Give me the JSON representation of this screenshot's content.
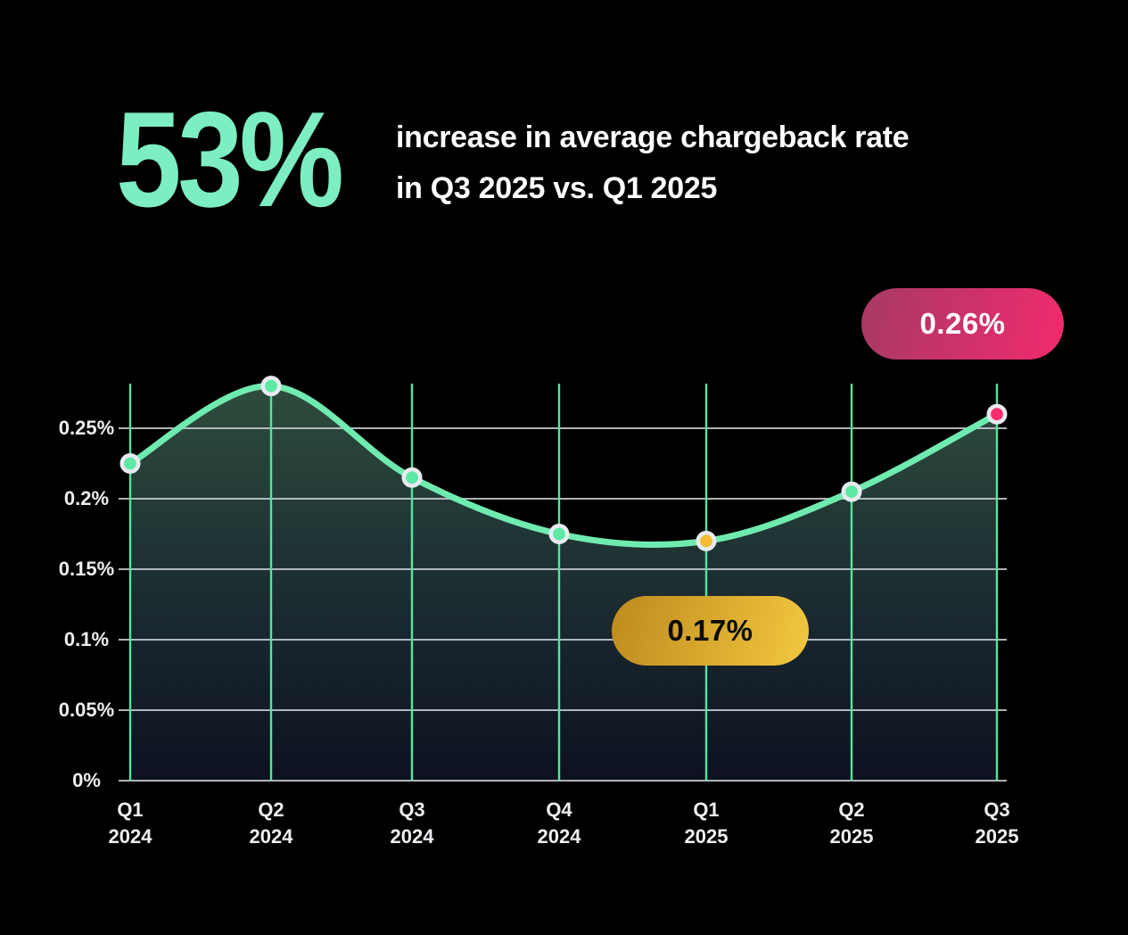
{
  "header": {
    "stat_value": "53%",
    "headline_line1": "increase in average chargeback rate",
    "headline_line2": "in Q3 2025 vs. Q1 2025"
  },
  "callouts": {
    "peak": {
      "label": "0.26%",
      "color_from": "#A63A65",
      "color_to": "#F22A6F",
      "text_color": "#FFFFFF"
    },
    "low": {
      "label": "0.17%",
      "color_from": "#BE8A1E",
      "color_to": "#F2C83F",
      "text_color": "#0B0B0B"
    }
  },
  "colors": {
    "background": "#000000",
    "stat_mint": "#7DEEC1",
    "headline_text": "#FFFFFF",
    "axis_text": "#EDEFF2",
    "line": "#70EBAF",
    "grid_vertical": "#52E69E",
    "grid_horizontal": "#C2C7CF",
    "point_ring": "#E7EAF0",
    "point_mint": "#5CE9A4",
    "point_gold": "#F5BD31",
    "point_pink": "#FA2E6F",
    "area_top": "#2E4D3D",
    "area_mid": "#1E3134",
    "area_bottom": "#0D1120"
  },
  "chart_data": {
    "type": "area",
    "title": "",
    "xlabel": "",
    "ylabel": "",
    "unit": "%",
    "categories": [
      "Q1 2024",
      "Q2 2024",
      "Q3 2024",
      "Q4 2024",
      "Q1 2025",
      "Q2 2025",
      "Q3 2025"
    ],
    "x_ticks": [
      {
        "quarter": "Q1",
        "year": "2024"
      },
      {
        "quarter": "Q2",
        "year": "2024"
      },
      {
        "quarter": "Q3",
        "year": "2024"
      },
      {
        "quarter": "Q4",
        "year": "2024"
      },
      {
        "quarter": "Q1",
        "year": "2025"
      },
      {
        "quarter": "Q2",
        "year": "2025"
      },
      {
        "quarter": "Q3",
        "year": "2025"
      }
    ],
    "values": [
      0.225,
      0.28,
      0.215,
      0.175,
      0.17,
      0.205,
      0.26
    ],
    "y_ticks": [
      0,
      0.05,
      0.1,
      0.15,
      0.2,
      0.25
    ],
    "y_tick_labels": [
      "0%",
      "0.05%",
      "0.1%",
      "0.15%",
      "0.2%",
      "0.25%"
    ],
    "ylim": [
      0,
      0.29
    ],
    "grid": true,
    "legend": false,
    "point_colors": [
      "mint",
      "mint",
      "mint",
      "mint",
      "gold",
      "mint",
      "pink"
    ],
    "annotations": [
      {
        "category": "Q1 2025",
        "label": "0.17%",
        "style": "gold-pill"
      },
      {
        "category": "Q3 2025",
        "label": "0.26%",
        "style": "pink-pill"
      }
    ]
  }
}
